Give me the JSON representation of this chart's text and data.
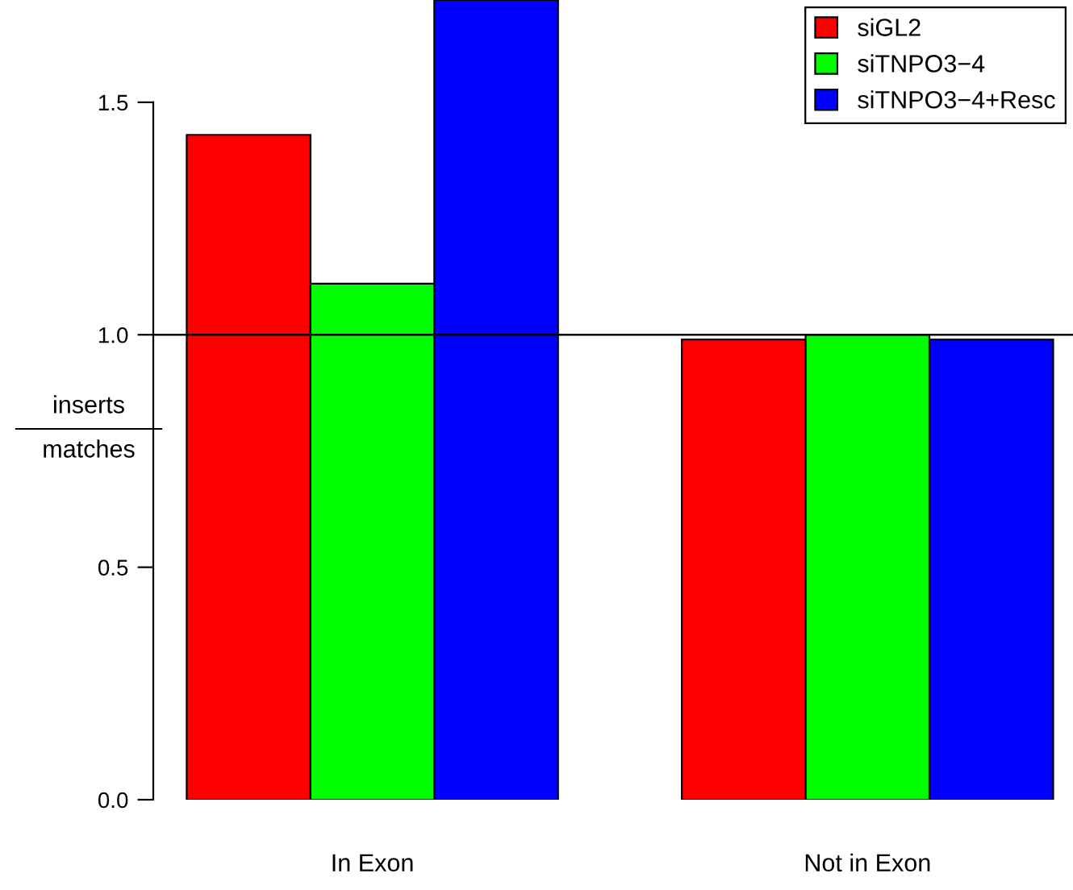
{
  "chart_data": {
    "type": "bar",
    "ylabel": "inserts\nmatches",
    "categories": [
      "In Exon",
      "Not in Exon"
    ],
    "series": [
      {
        "name": "siGL2",
        "color": "#ff0000",
        "values": [
          1.43,
          0.99
        ]
      },
      {
        "name": "siTNPO3−4",
        "color": "#00ff00",
        "values": [
          1.11,
          1.0
        ]
      },
      {
        "name": "siTNPO3−4+Resc",
        "color": "#0000ff",
        "values": [
          1.72,
          0.99
        ]
      }
    ],
    "ylim": [
      0,
      1.72
    ],
    "yticks": [
      {
        "value": 0,
        "label": "0.0"
      },
      {
        "value": 0.5,
        "label": "0.5"
      },
      {
        "value": 1,
        "label": "1.0"
      },
      {
        "value": 1.5,
        "label": "1.5"
      }
    ],
    "ref_lines": [
      {
        "axis": "y",
        "value": 1,
        "color": "#000000"
      }
    ],
    "legend": "top right",
    "grid": false
  }
}
